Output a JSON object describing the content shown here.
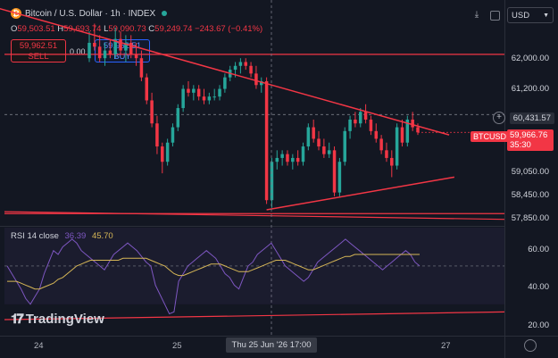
{
  "header": {
    "symbol_title": "Bitcoin / U.S. Dollar · 1h · INDEX",
    "ohlc": {
      "o": "59,503.51",
      "h": "59,693.74",
      "l": "59,090.73",
      "c": "59,249.74",
      "change": "−243.67 (−0.41%)"
    }
  },
  "trade": {
    "sell_price": "59,962.51",
    "sell_label": "SELL",
    "spread": "0.00",
    "buy_price": "59,962.51",
    "buy_label": "BUY"
  },
  "currency_select": {
    "value": "USD"
  },
  "price_axis": {
    "labels": [
      "62,000.00",
      "61,200.00",
      "59,050.00",
      "58,450.00",
      "57,850.00"
    ],
    "crosshair_price": "60,431.57",
    "last_symbol": "BTCUSD",
    "last_price": "59,966.76",
    "countdown": "35:30"
  },
  "rsi": {
    "label": "RSI 14 close",
    "value1": "36.39",
    "value2": "45.70",
    "axis_labels": [
      "60.00",
      "40.00",
      "20.00"
    ]
  },
  "time_axis": {
    "labels": [
      "24",
      "25",
      "27"
    ],
    "crosshair_time": "Thu 25 Jun '26   17:00"
  },
  "branding": {
    "watermark": "TradingView"
  },
  "colors": {
    "up": "#26a69a",
    "down": "#f23645",
    "background": "#131722",
    "trendline": "#f23645",
    "rsi_line": "#7e57c2",
    "rsi_ma": "#d6b656",
    "accent": "#2962ff"
  },
  "chart_data": [
    {
      "type": "candlestick",
      "title": "Bitcoin / U.S. Dollar · 1h · INDEX",
      "candles": [
        {
          "o": 61900,
          "h": 62600,
          "l": 61800,
          "c": 62300
        },
        {
          "o": 62300,
          "h": 62800,
          "l": 62100,
          "c": 62200
        },
        {
          "o": 62200,
          "h": 62500,
          "l": 61800,
          "c": 61900
        },
        {
          "o": 61900,
          "h": 62300,
          "l": 61700,
          "c": 62100
        },
        {
          "o": 62100,
          "h": 62400,
          "l": 61900,
          "c": 62000
        },
        {
          "o": 62000,
          "h": 62700,
          "l": 61900,
          "c": 62400
        },
        {
          "o": 62400,
          "h": 62600,
          "l": 62000,
          "c": 62100
        },
        {
          "o": 62100,
          "h": 62500,
          "l": 61800,
          "c": 62300
        },
        {
          "o": 62300,
          "h": 62500,
          "l": 61900,
          "c": 62000
        },
        {
          "o": 62000,
          "h": 62300,
          "l": 61700,
          "c": 61900
        },
        {
          "o": 61900,
          "h": 62100,
          "l": 61300,
          "c": 61400
        },
        {
          "o": 61400,
          "h": 61500,
          "l": 60700,
          "c": 60800
        },
        {
          "o": 60800,
          "h": 61000,
          "l": 60100,
          "c": 60200
        },
        {
          "o": 60200,
          "h": 60400,
          "l": 59400,
          "c": 59600
        },
        {
          "o": 59600,
          "h": 59700,
          "l": 58900,
          "c": 59200
        },
        {
          "o": 59200,
          "h": 59800,
          "l": 59100,
          "c": 59700
        },
        {
          "o": 59700,
          "h": 60200,
          "l": 59600,
          "c": 60100
        },
        {
          "o": 60100,
          "h": 60700,
          "l": 60000,
          "c": 60600
        },
        {
          "o": 60600,
          "h": 61200,
          "l": 60500,
          "c": 61100
        },
        {
          "o": 61100,
          "h": 61300,
          "l": 60900,
          "c": 61000
        },
        {
          "o": 61000,
          "h": 61200,
          "l": 60800,
          "c": 61100
        },
        {
          "o": 61100,
          "h": 61200,
          "l": 60800,
          "c": 60900
        },
        {
          "o": 60900,
          "h": 61100,
          "l": 60700,
          "c": 60800
        },
        {
          "o": 60800,
          "h": 61000,
          "l": 60700,
          "c": 60900
        },
        {
          "o": 60900,
          "h": 61100,
          "l": 60800,
          "c": 60900
        },
        {
          "o": 60900,
          "h": 61200,
          "l": 60800,
          "c": 61100
        },
        {
          "o": 61100,
          "h": 61500,
          "l": 61000,
          "c": 61400
        },
        {
          "o": 61400,
          "h": 61700,
          "l": 61300,
          "c": 61600
        },
        {
          "o": 61600,
          "h": 61800,
          "l": 61400,
          "c": 61700
        },
        {
          "o": 61700,
          "h": 61900,
          "l": 61500,
          "c": 61800
        },
        {
          "o": 61800,
          "h": 61900,
          "l": 61600,
          "c": 61700
        },
        {
          "o": 61700,
          "h": 61800,
          "l": 61400,
          "c": 61500
        },
        {
          "o": 61500,
          "h": 61700,
          "l": 61100,
          "c": 61200
        },
        {
          "o": 61200,
          "h": 61400,
          "l": 61000,
          "c": 61300
        },
        {
          "o": 61300,
          "h": 61400,
          "l": 58100,
          "c": 58200
        },
        {
          "o": 58200,
          "h": 59300,
          "l": 58000,
          "c": 59200
        },
        {
          "o": 59200,
          "h": 59500,
          "l": 59000,
          "c": 59300
        },
        {
          "o": 59300,
          "h": 59500,
          "l": 59100,
          "c": 59400
        },
        {
          "o": 59400,
          "h": 59500,
          "l": 59100,
          "c": 59200
        },
        {
          "o": 59200,
          "h": 59400,
          "l": 59000,
          "c": 59300
        },
        {
          "o": 59300,
          "h": 59500,
          "l": 59100,
          "c": 59200
        },
        {
          "o": 59200,
          "h": 59700,
          "l": 59100,
          "c": 59600
        },
        {
          "o": 59600,
          "h": 60200,
          "l": 59500,
          "c": 60100
        },
        {
          "o": 60100,
          "h": 60300,
          "l": 59700,
          "c": 59800
        },
        {
          "o": 59800,
          "h": 60000,
          "l": 59500,
          "c": 59600
        },
        {
          "o": 59600,
          "h": 59800,
          "l": 59300,
          "c": 59400
        },
        {
          "o": 59400,
          "h": 59700,
          "l": 59300,
          "c": 59500
        },
        {
          "o": 59500,
          "h": 59600,
          "l": 58300,
          "c": 58400
        },
        {
          "o": 58400,
          "h": 59300,
          "l": 58300,
          "c": 59200
        },
        {
          "o": 59200,
          "h": 60100,
          "l": 59100,
          "c": 60000
        },
        {
          "o": 60000,
          "h": 60400,
          "l": 59800,
          "c": 60300
        },
        {
          "o": 60300,
          "h": 60500,
          "l": 60100,
          "c": 60200
        },
        {
          "o": 60200,
          "h": 60600,
          "l": 60100,
          "c": 60500
        },
        {
          "o": 60500,
          "h": 60700,
          "l": 60200,
          "c": 60300
        },
        {
          "o": 60300,
          "h": 60400,
          "l": 59900,
          "c": 60000
        },
        {
          "o": 60000,
          "h": 60200,
          "l": 59700,
          "c": 59800
        },
        {
          "o": 59800,
          "h": 59900,
          "l": 59400,
          "c": 59500
        },
        {
          "o": 59500,
          "h": 59700,
          "l": 59200,
          "c": 59300
        },
        {
          "o": 59300,
          "h": 59500,
          "l": 58800,
          "c": 59100
        },
        {
          "o": 59100,
          "h": 60200,
          "l": 59000,
          "c": 60100
        },
        {
          "o": 60100,
          "h": 60300,
          "l": 59600,
          "c": 59700
        },
        {
          "o": 59700,
          "h": 60400,
          "l": 59600,
          "c": 60300
        },
        {
          "o": 60300,
          "h": 60500,
          "l": 60000,
          "c": 60100
        },
        {
          "o": 60100,
          "h": 60200,
          "l": 59900,
          "c": 59966.76
        }
      ],
      "horizontal_levels": [
        62000,
        57850
      ],
      "ylim": [
        57600,
        63300
      ],
      "current_price": 59966.76,
      "crosshair_price": 60431.57
    },
    {
      "type": "line",
      "title": "RSI 14 close",
      "series": [
        {
          "name": "RSI",
          "values": [
            50,
            46,
            42,
            38,
            33,
            30,
            34,
            38,
            46,
            52,
            58,
            56,
            60,
            62,
            64,
            62,
            58,
            56,
            54,
            52,
            50,
            48,
            52,
            56,
            58,
            60,
            62,
            60,
            58,
            55,
            52,
            50,
            40,
            35,
            30,
            25,
            26,
            42,
            46,
            50,
            52,
            54,
            56,
            58,
            56,
            54,
            50,
            46,
            44,
            40,
            38,
            44,
            50,
            52,
            56,
            58,
            60,
            62,
            58,
            54,
            50,
            48,
            46,
            44,
            42,
            44,
            48,
            52,
            54,
            56,
            58,
            60,
            62,
            64,
            62,
            60,
            58,
            56,
            54,
            52,
            50,
            48,
            50,
            52,
            54,
            56,
            58,
            56,
            52,
            50
          ]
        },
        {
          "name": "RSI-based MA",
          "values": [
            42,
            42,
            42,
            41,
            40,
            39,
            38,
            38,
            39,
            40,
            41,
            43,
            44,
            46,
            48,
            50,
            51,
            52,
            53,
            53,
            53,
            53,
            53,
            53,
            53,
            54,
            54,
            54,
            54,
            54,
            54,
            53,
            52,
            51,
            50,
            48,
            46,
            45,
            45,
            46,
            47,
            48,
            49,
            50,
            51,
            51,
            51,
            50,
            49,
            48,
            47,
            47,
            47,
            48,
            49,
            50,
            51,
            52,
            53,
            53,
            53,
            52,
            51,
            50,
            49,
            48,
            48,
            49,
            50,
            51,
            52,
            53,
            54,
            55,
            55,
            56,
            56,
            56,
            56,
            56,
            56,
            56,
            56,
            56,
            56,
            56,
            56,
            56,
            56,
            56
          ]
        }
      ],
      "ylim": [
        15,
        70
      ]
    }
  ]
}
